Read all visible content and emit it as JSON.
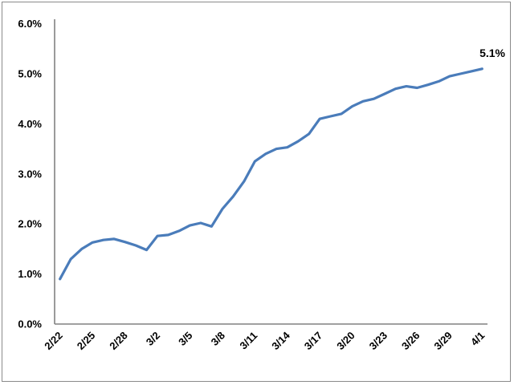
{
  "chart_data": {
    "type": "line",
    "title": "",
    "xlabel": "",
    "ylabel": "",
    "x": [
      "2/22",
      "2/23",
      "2/24",
      "2/25",
      "2/26",
      "2/27",
      "2/28",
      "2/29",
      "3/1",
      "3/2",
      "3/3",
      "3/4",
      "3/5",
      "3/6",
      "3/7",
      "3/8",
      "3/9",
      "3/10",
      "3/11",
      "3/12",
      "3/13",
      "3/14",
      "3/15",
      "3/16",
      "3/17",
      "3/18",
      "3/19",
      "3/20",
      "3/21",
      "3/22",
      "3/23",
      "3/24",
      "3/25",
      "3/26",
      "3/27",
      "3/28",
      "3/29",
      "3/30",
      "3/31",
      "4/1"
    ],
    "values": [
      0.9,
      1.3,
      1.5,
      1.63,
      1.68,
      1.7,
      1.64,
      1.57,
      1.48,
      1.76,
      1.78,
      1.86,
      1.97,
      2.02,
      1.95,
      2.3,
      2.55,
      2.85,
      3.25,
      3.4,
      3.5,
      3.53,
      3.65,
      3.8,
      4.1,
      4.15,
      4.2,
      4.35,
      4.45,
      4.5,
      4.6,
      4.7,
      4.75,
      4.72,
      4.78,
      4.85,
      4.95,
      5.0,
      5.05,
      5.1
    ],
    "x_tick_labels": [
      "2/22",
      "2/25",
      "2/28",
      "3/2",
      "3/5",
      "3/8",
      "3/11",
      "3/14",
      "3/17",
      "3/20",
      "3/23",
      "3/26",
      "3/29",
      "4/1"
    ],
    "x_tick_every": 3,
    "y_tick_labels": [
      "0.0%",
      "1.0%",
      "2.0%",
      "3.0%",
      "4.0%",
      "5.0%",
      "6.0%"
    ],
    "ylim": [
      0,
      6
    ],
    "grid": false,
    "legend": false,
    "last_point_label": "5.1%",
    "line_color": "#4a7cba",
    "axis_color": "#808080",
    "frame_color": "#8a8a8a",
    "label_color": "#000000"
  }
}
